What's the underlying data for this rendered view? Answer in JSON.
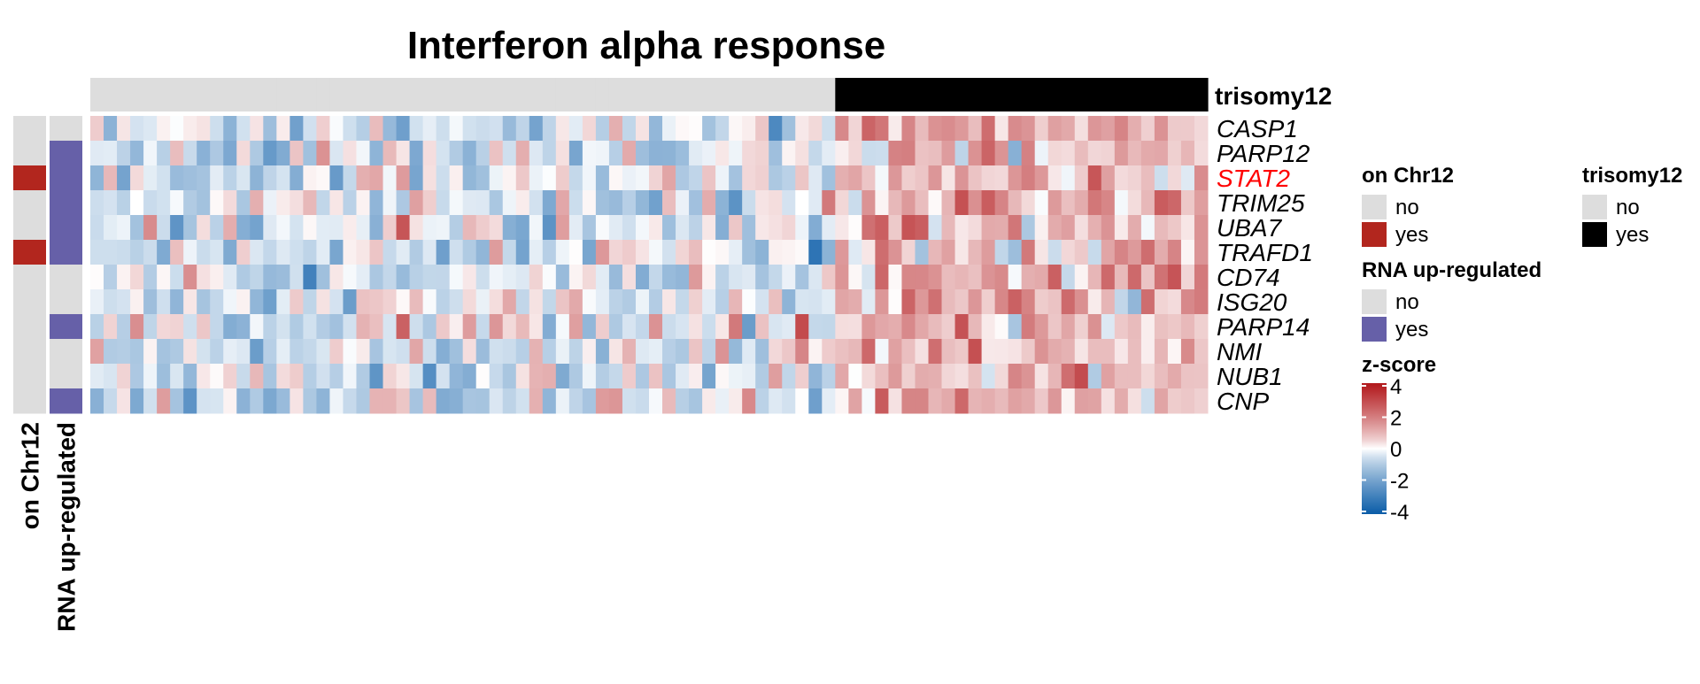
{
  "chart_data": {
    "type": "heatmap",
    "title": "Interferon alpha response",
    "rows": [
      "CASP1",
      "PARP12",
      "STAT2",
      "TRIM25",
      "UBA7",
      "TRAFD1",
      "CD74",
      "ISG20",
      "PARP14",
      "NMI",
      "NUB1",
      "CNP"
    ],
    "highlight_rows": [
      "STAT2"
    ],
    "highlight_color": "#FF0000",
    "n_samples": 84,
    "n_trisomy12_no": 56,
    "n_trisomy12_yes": 28,
    "top_annotation": {
      "name": "trisomy12",
      "legend": [
        {
          "label": "no",
          "color": "#DDDDDD"
        },
        {
          "label": "yes",
          "color": "#000000"
        }
      ]
    },
    "row_annotations": [
      {
        "name": "on Chr12",
        "values": [
          "no",
          "no",
          "yes",
          "no",
          "no",
          "yes",
          "no",
          "no",
          "no",
          "no",
          "no",
          "no"
        ],
        "legend": [
          {
            "label": "no",
            "color": "#DDDDDD"
          },
          {
            "label": "yes",
            "color": "#B2261E"
          }
        ]
      },
      {
        "name": "RNA up-regulated",
        "values": [
          "no",
          "yes",
          "yes",
          "yes",
          "yes",
          "yes",
          "no",
          "no",
          "yes",
          "no",
          "no",
          "yes"
        ],
        "legend": [
          {
            "label": "no",
            "color": "#DDDDDD"
          },
          {
            "label": "yes",
            "color": "#6660A8"
          }
        ]
      }
    ],
    "color_scale": {
      "title": "z-score",
      "range": [
        -4,
        4
      ],
      "ticks": [
        4,
        2,
        0,
        -2,
        -4
      ],
      "colors": {
        "low": "#0A5CA8",
        "mid": "#FFFFFF",
        "high": "#B2181B"
      }
    },
    "values_note": "cell z-scores estimated from colour; rows approximately centred, trisomy12 'yes' columns shifted positive"
  }
}
